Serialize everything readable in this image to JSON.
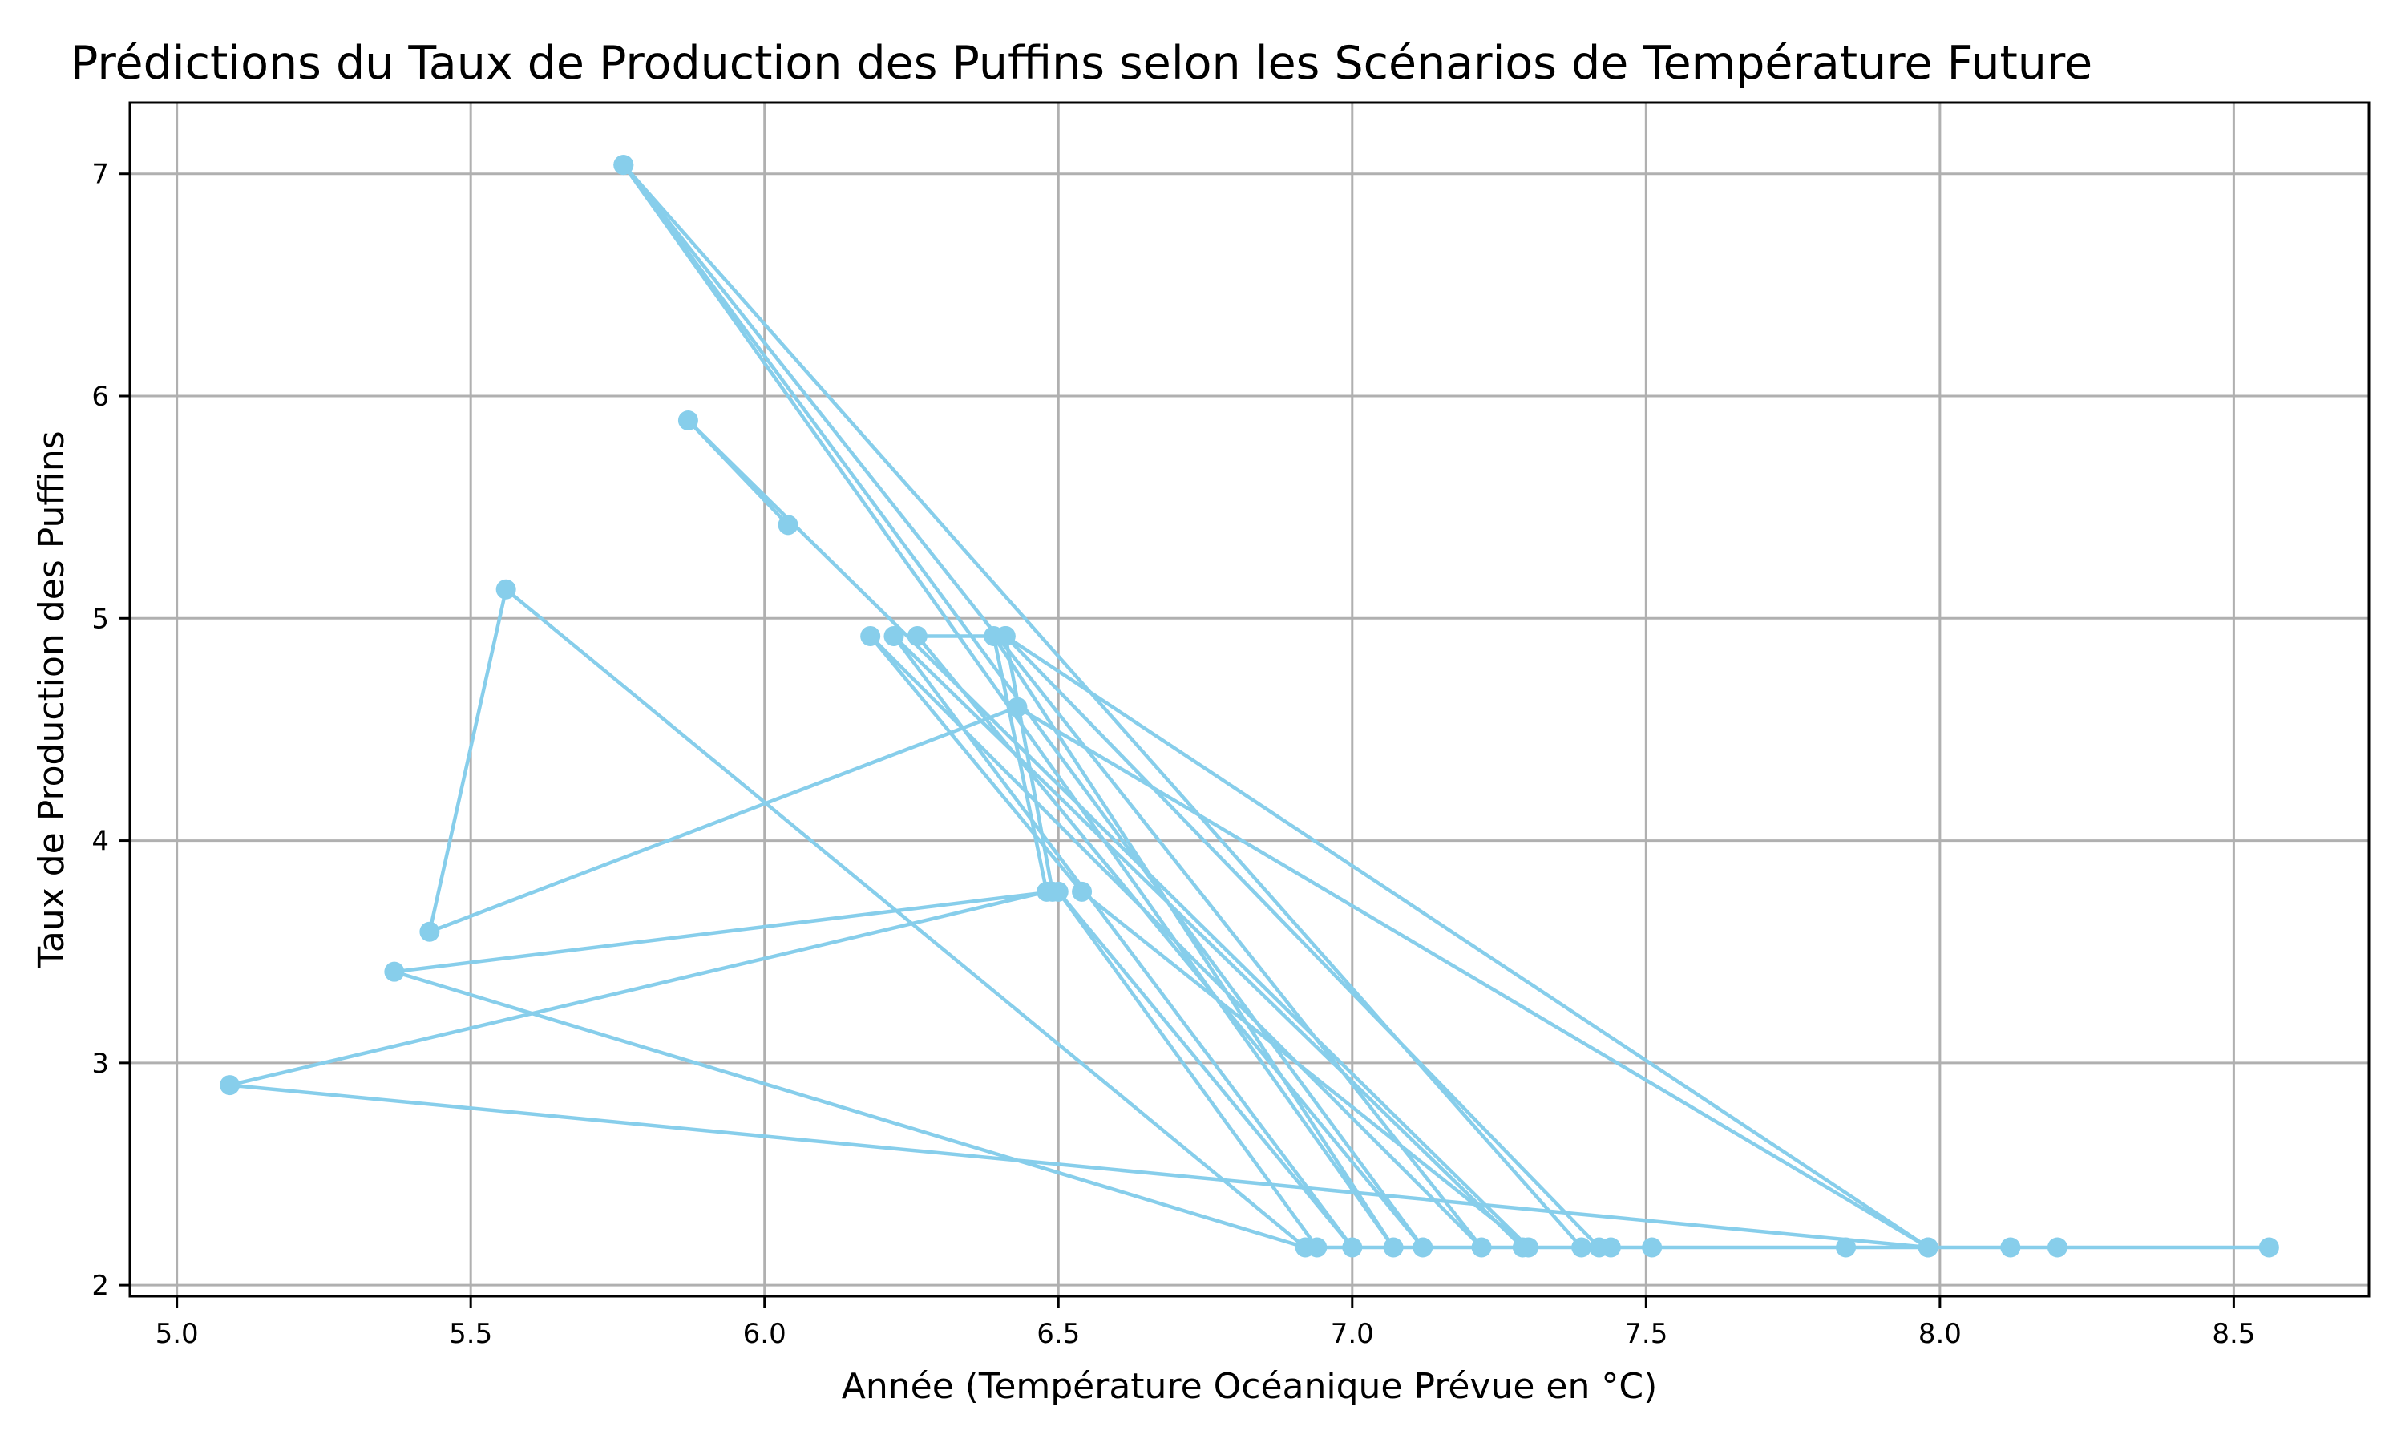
{
  "chart_data": {
    "type": "line",
    "title": "Prédictions du Taux de Production des Puffins selon les Scénarios de Température Future",
    "xlabel": "Année (Température Océanique Prévue en °C)",
    "ylabel": "Taux de Production des Puffins",
    "xlim": [
      4.92,
      8.73
    ],
    "ylim": [
      1.95,
      7.32
    ],
    "xticks": [
      5.0,
      5.5,
      6.0,
      6.5,
      7.0,
      7.5,
      8.0,
      8.5
    ],
    "xtick_labels": [
      "5.0",
      "5.5",
      "6.0",
      "6.5",
      "7.0",
      "7.5",
      "8.0",
      "8.5"
    ],
    "yticks": [
      2,
      3,
      4,
      5,
      6,
      7
    ],
    "ytick_labels": [
      "2",
      "3",
      "4",
      "5",
      "6",
      "7"
    ],
    "grid": true,
    "color": "#87CEEB",
    "marker": "circle",
    "points": [
      {
        "x": 6.04,
        "y": 5.42
      },
      {
        "x": 5.87,
        "y": 5.89
      },
      {
        "x": 7.3,
        "y": 2.17
      },
      {
        "x": 6.54,
        "y": 3.77
      },
      {
        "x": 6.18,
        "y": 4.92
      },
      {
        "x": 7.22,
        "y": 2.17
      },
      {
        "x": 5.76,
        "y": 7.04
      },
      {
        "x": 7.07,
        "y": 2.17
      },
      {
        "x": 6.39,
        "y": 4.92
      },
      {
        "x": 6.48,
        "y": 3.77
      },
      {
        "x": 5.09,
        "y": 2.9
      },
      {
        "x": 7.98,
        "y": 2.17
      },
      {
        "x": 6.41,
        "y": 4.92
      },
      {
        "x": 7.42,
        "y": 2.17
      },
      {
        "x": 7.39,
        "y": 2.17
      },
      {
        "x": 5.76,
        "y": 7.04
      },
      {
        "x": 7.12,
        "y": 2.17
      },
      {
        "x": 6.26,
        "y": 4.92
      },
      {
        "x": 6.41,
        "y": 4.92
      },
      {
        "x": 6.49,
        "y": 3.77
      },
      {
        "x": 5.37,
        "y": 3.41
      },
      {
        "x": 6.92,
        "y": 2.17
      },
      {
        "x": 5.56,
        "y": 5.13
      },
      {
        "x": 5.43,
        "y": 3.59
      },
      {
        "x": 6.43,
        "y": 4.6
      },
      {
        "x": 7.98,
        "y": 2.17
      },
      {
        "x": 8.12,
        "y": 2.17
      },
      {
        "x": 7.29,
        "y": 2.17
      },
      {
        "x": 6.22,
        "y": 4.92
      },
      {
        "x": 7.0,
        "y": 2.17
      },
      {
        "x": 6.5,
        "y": 3.77
      },
      {
        "x": 6.94,
        "y": 2.17
      },
      {
        "x": 7.84,
        "y": 2.17
      },
      {
        "x": 7.44,
        "y": 2.17
      },
      {
        "x": 7.51,
        "y": 2.17
      },
      {
        "x": 8.2,
        "y": 2.17
      },
      {
        "x": 8.56,
        "y": 2.17
      }
    ]
  }
}
